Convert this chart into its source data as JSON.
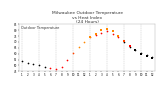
{
  "title": "Milwaukee Outdoor Temperature\nvs Heat Index\n(24 Hours)",
  "title_fontsize": 3.2,
  "ylim": [
    45,
    85
  ],
  "yticks": [
    45,
    50,
    55,
    60,
    65,
    70,
    75,
    80,
    85
  ],
  "ytick_labels": [
    "45",
    "50",
    "55",
    "60",
    "65",
    "70",
    "75",
    "80",
    "85"
  ],
  "xtick_labels": [
    "1",
    "2",
    "3",
    "4",
    "5",
    "6",
    "7",
    "8",
    "9",
    "10",
    "11",
    "12",
    "1",
    "2",
    "3",
    "4",
    "5",
    "6",
    "7",
    "8",
    "9",
    "10",
    "11",
    "12"
  ],
  "background_color": "#ffffff",
  "grid_color": "#c0c0c0",
  "temp_x": [
    0,
    1,
    2,
    3,
    4,
    5,
    6,
    7,
    8,
    9,
    10,
    11,
    12,
    13,
    14,
    15,
    16,
    17,
    18,
    19,
    20,
    21,
    22,
    23
  ],
  "temp_y": [
    54,
    52,
    51,
    50,
    49,
    48,
    47,
    49,
    55,
    61,
    66,
    70,
    74,
    76,
    78,
    79,
    77,
    74,
    70,
    66,
    63,
    61,
    59,
    57
  ],
  "heat_x": [
    12,
    13,
    14,
    15,
    16,
    17,
    18,
    19,
    20,
    21,
    22,
    23
  ],
  "heat_y": [
    74,
    77,
    80,
    81,
    79,
    75,
    71,
    67,
    63,
    60,
    58,
    56
  ],
  "dot_colors_temp": [
    "#000000",
    "#000000",
    "#000000",
    "#000000",
    "#000000",
    "#ff0000",
    "#ff0000",
    "#ff0000",
    "#ff0000",
    "#ff4400",
    "#ff8800",
    "#ff8800",
    "#ff4400",
    "#ff0000",
    "#ff0000",
    "#ff0000",
    "#ff0000",
    "#ff0000",
    "#000000",
    "#000000",
    "#000000",
    "#000000",
    "#000000",
    "#000000"
  ],
  "dot_colors_heat": [
    "#ff8800",
    "#ff8800",
    "#ff8800",
    "#ff8800",
    "#ff8800",
    "#ff8800",
    "#ff4400",
    "#ff0000",
    "#000000",
    "#000000",
    "#000000",
    "#000000"
  ],
  "dot_size": 1.5,
  "legend_text": "Outdoor Temperature",
  "legend_fontsize": 2.5
}
